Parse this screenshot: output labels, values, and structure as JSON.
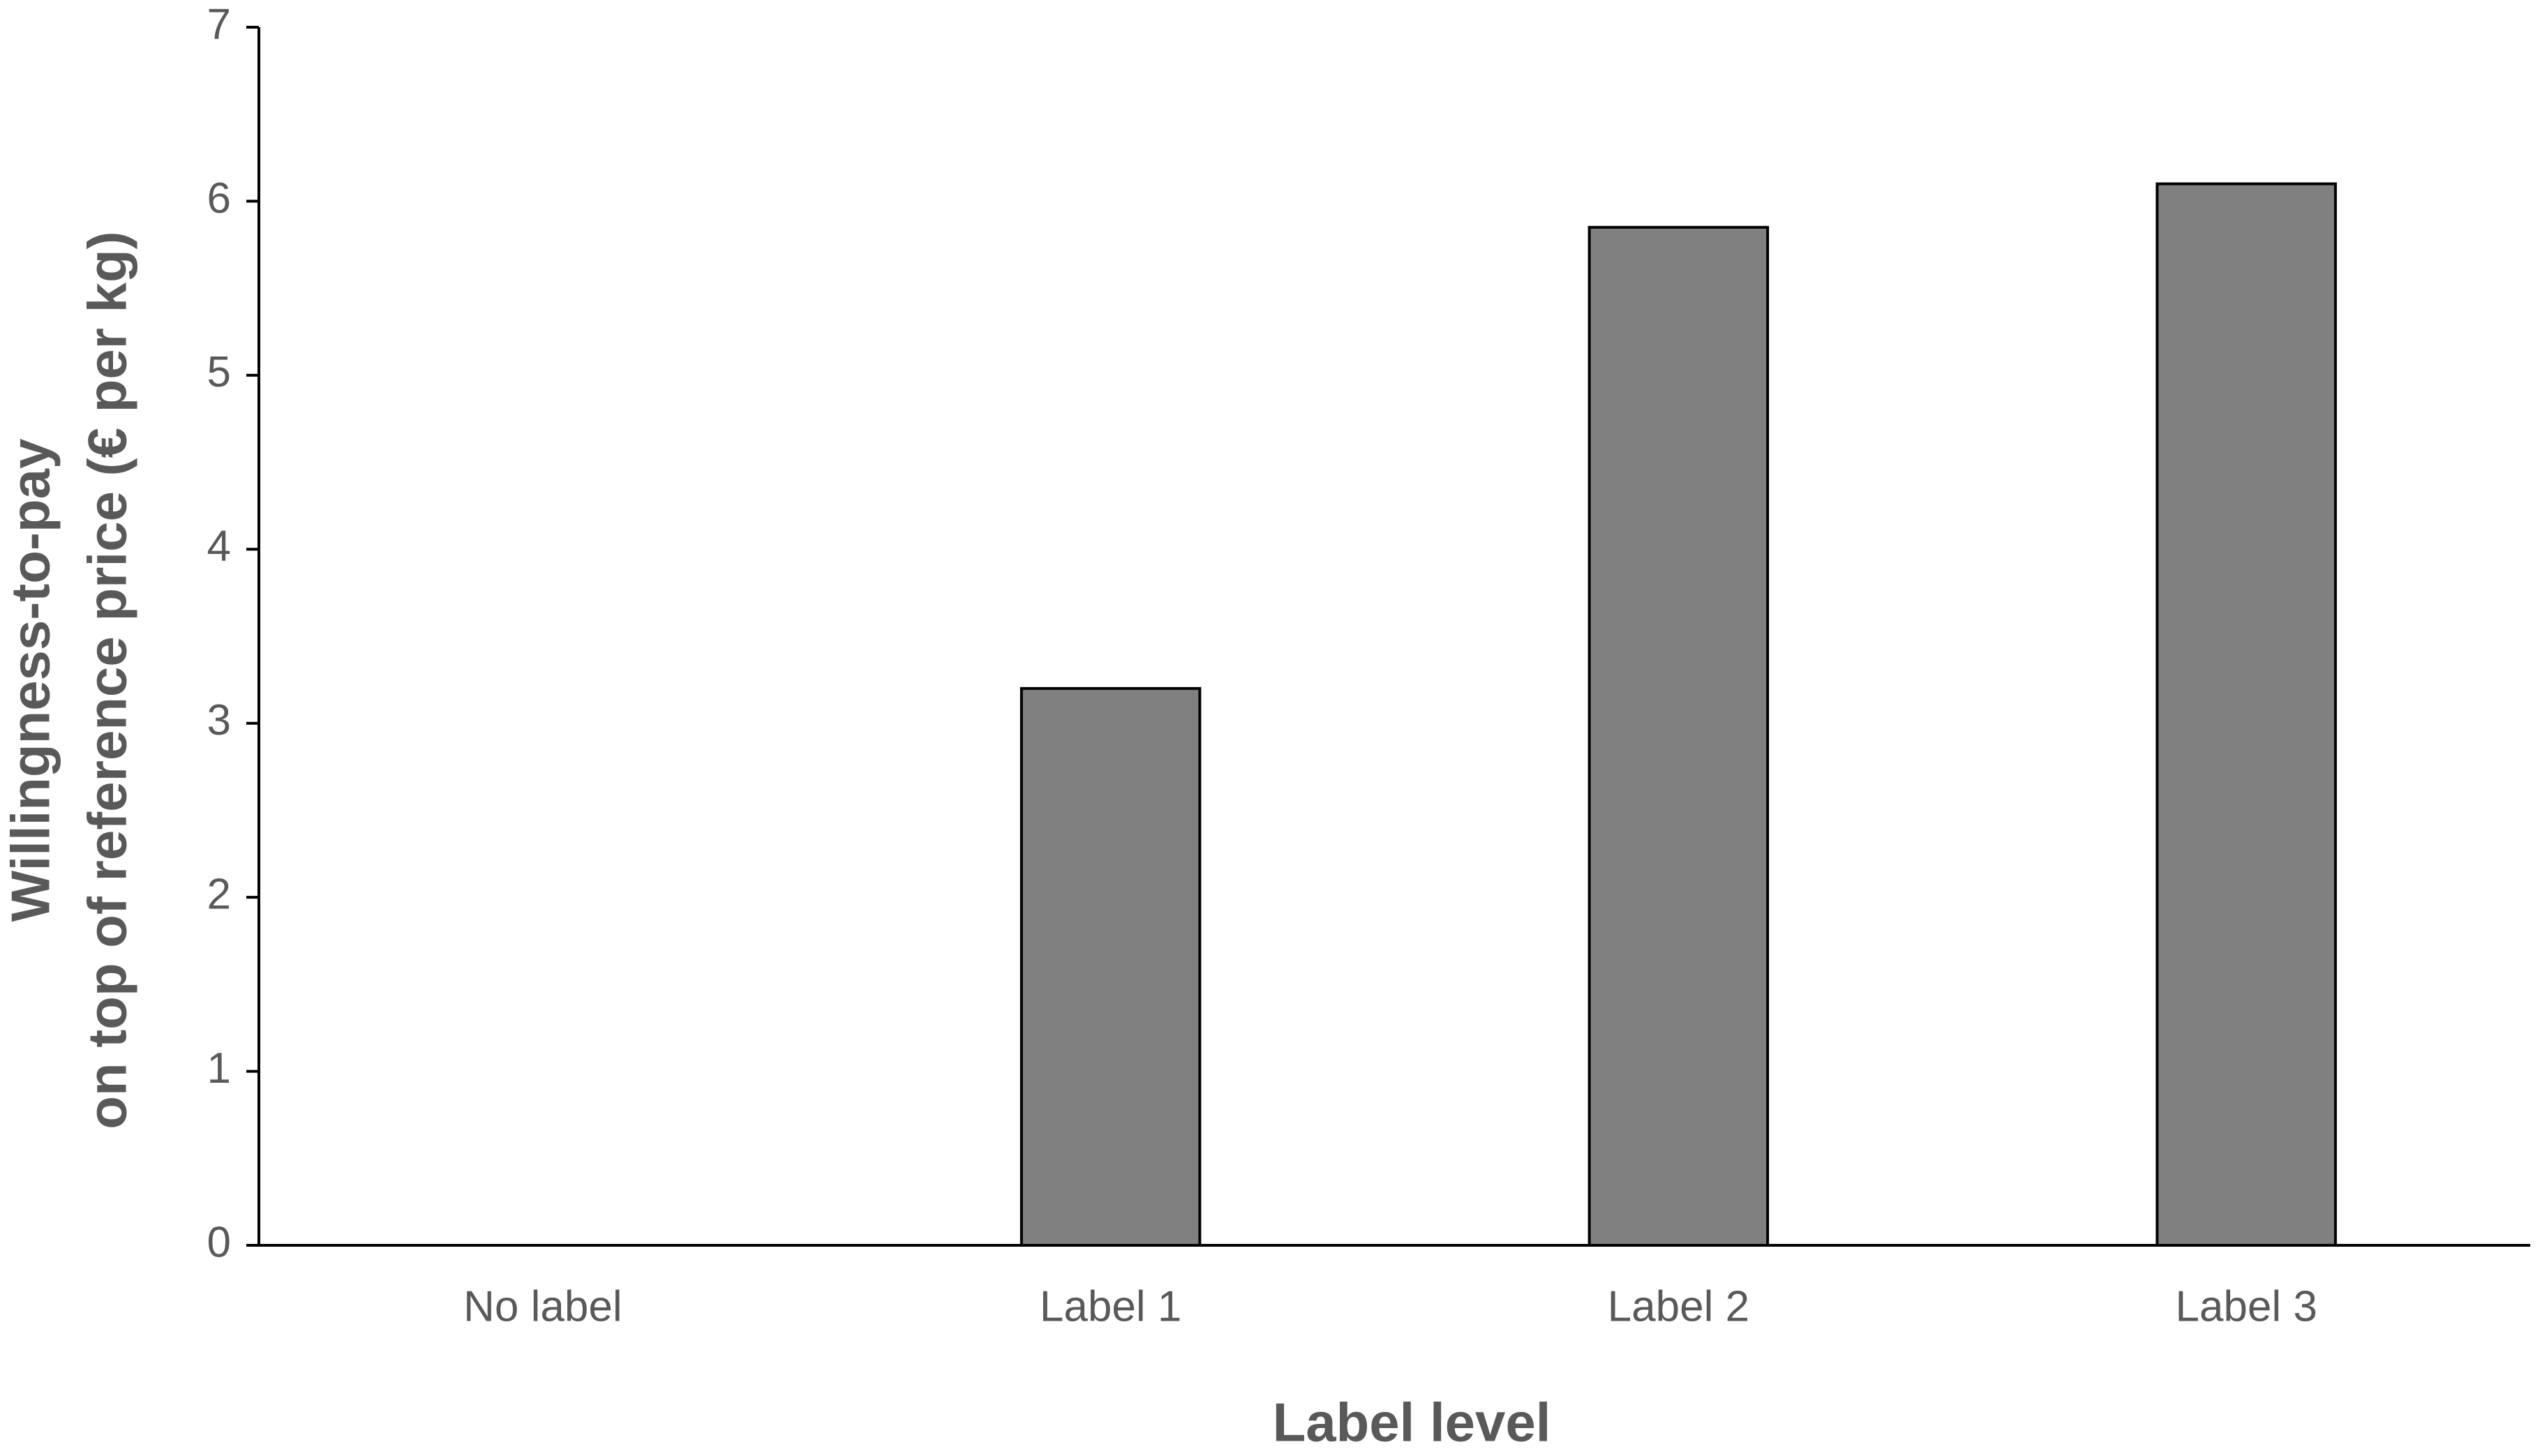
{
  "chart_data": {
    "type": "bar",
    "x_label": "Label level",
    "y_label": [
      "Willingness-to-pay",
      "on top of reference price (€ per kg)"
    ],
    "categories": [
      "No label",
      "Label 1",
      "Label 2",
      "Label 3"
    ],
    "values": [
      0,
      3.2,
      5.85,
      6.1
    ],
    "color": "#808080",
    "ylim": [
      0,
      7
    ],
    "yticks": [
      0,
      1,
      2,
      3,
      4,
      5,
      6,
      7
    ],
    "grid": false
  }
}
